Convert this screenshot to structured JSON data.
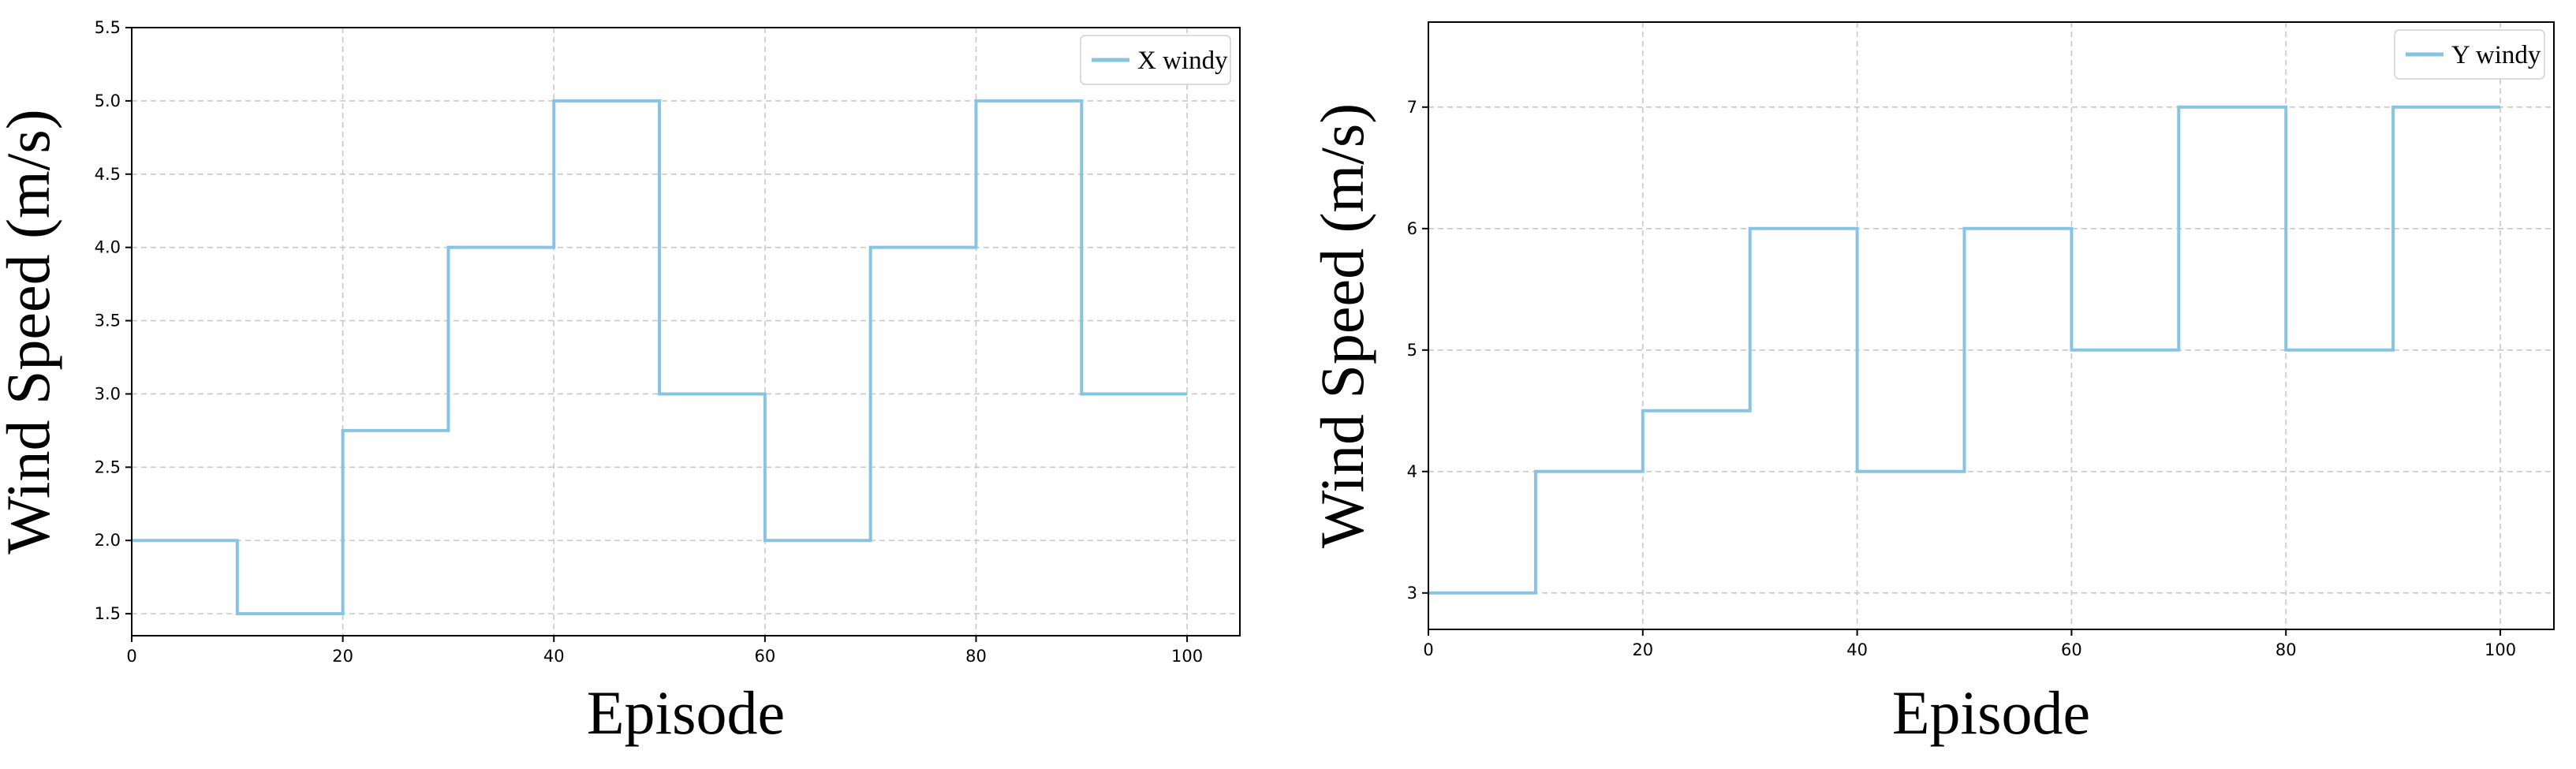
{
  "chart_data": [
    {
      "type": "line",
      "step": "post",
      "xlabel": "Episode",
      "ylabel": "Wind Speed (m/s)",
      "xlim": [
        0,
        105
      ],
      "ylim": [
        1.35,
        5.5
      ],
      "xticks": [
        0,
        20,
        40,
        60,
        80,
        100
      ],
      "yticks": [
        1.5,
        2.0,
        2.5,
        3.0,
        3.5,
        4.0,
        4.5,
        5.0,
        5.5
      ],
      "ytick_labels": [
        "1.5",
        "2.0",
        "2.5",
        "3.0",
        "3.5",
        "4.0",
        "4.5",
        "5.0",
        "5.5"
      ],
      "grid": true,
      "legend_position": "top-right",
      "series": [
        {
          "name": "X windy",
          "color": "#87c4e3",
          "x": [
            0,
            10,
            20,
            30,
            40,
            50,
            60,
            70,
            80,
            90,
            100
          ],
          "y": [
            2.0,
            1.5,
            2.75,
            4.0,
            5.0,
            3.0,
            2.0,
            4.0,
            5.0,
            3.0,
            3.0
          ]
        }
      ]
    },
    {
      "type": "line",
      "step": "post",
      "xlabel": "Episode",
      "ylabel": "Wind Speed (m/s)",
      "xlim": [
        0,
        105
      ],
      "ylim": [
        2.7,
        7.7
      ],
      "xticks": [
        0,
        20,
        40,
        60,
        80,
        100
      ],
      "yticks": [
        3,
        4,
        5,
        6,
        7
      ],
      "ytick_labels": [
        "3",
        "4",
        "5",
        "6",
        "7"
      ],
      "grid": true,
      "legend_position": "top-right",
      "series": [
        {
          "name": "Y windy",
          "color": "#87c4e3",
          "x": [
            0,
            10,
            20,
            30,
            40,
            50,
            60,
            70,
            80,
            90,
            100
          ],
          "y": [
            3.0,
            4.0,
            4.5,
            6.0,
            4.0,
            6.0,
            5.0,
            7.0,
            5.0,
            7.0,
            7.0
          ]
        }
      ]
    }
  ]
}
